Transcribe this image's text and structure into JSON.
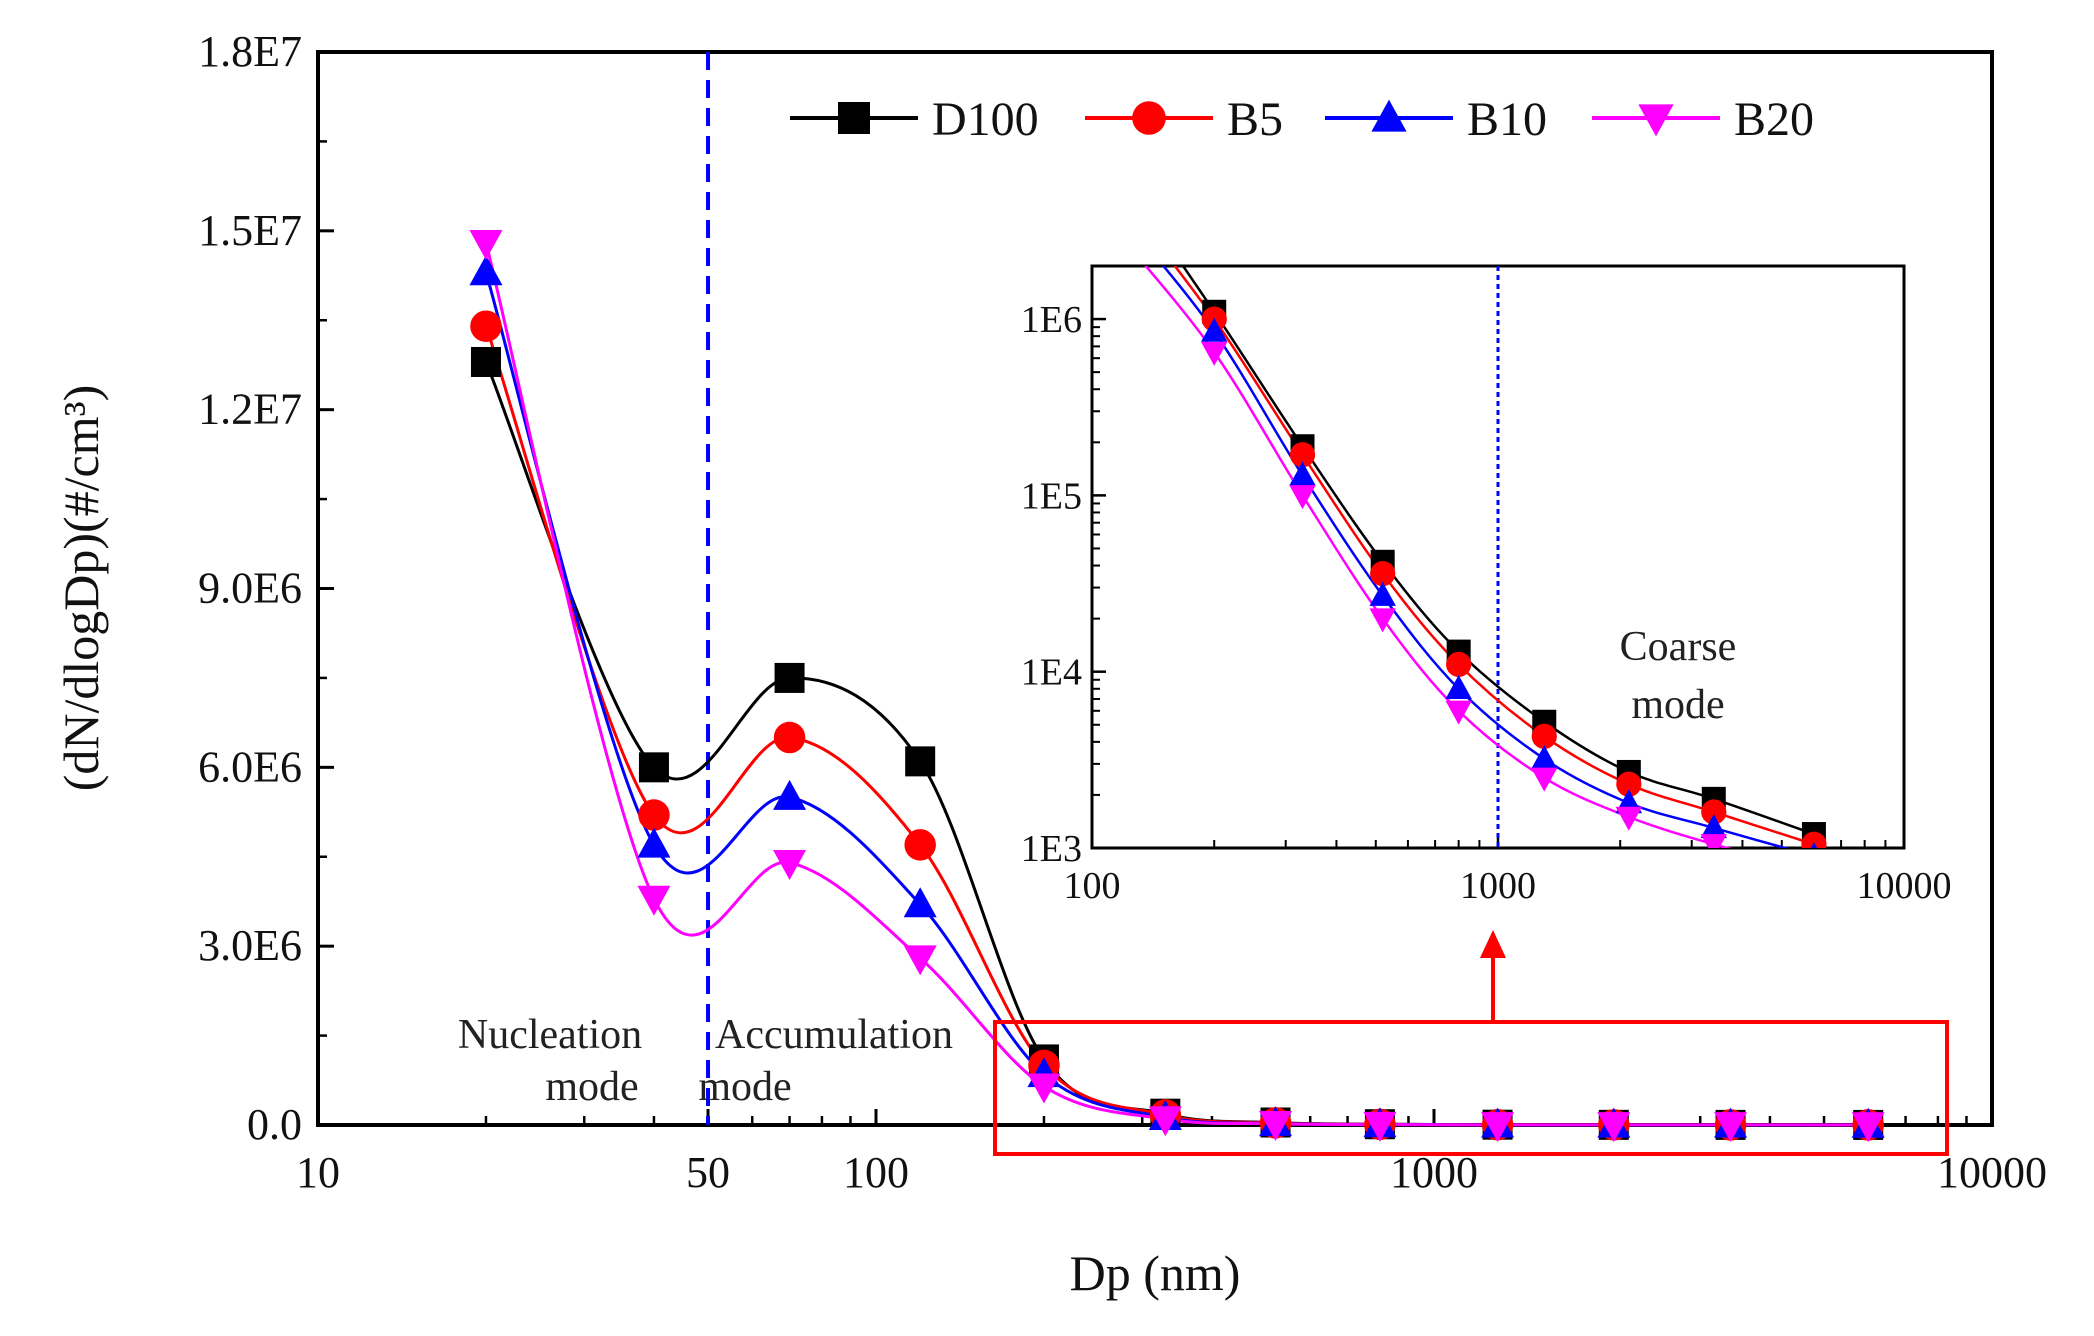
{
  "chart_data": [
    {
      "type": "line",
      "xlabel": "Dp (nm)",
      "ylabel": "(dN/dlogDp)(#/cm³)",
      "xscale": "log",
      "xlim": [
        10,
        10000
      ],
      "ylim": [
        0,
        18000000
      ],
      "x_ticks": [
        10,
        50,
        100,
        1000,
        10000
      ],
      "x_tick_labels": [
        "10",
        "50",
        "100",
        "1000",
        "10000"
      ],
      "y_ticks": [
        0,
        3000000,
        6000000,
        9000000,
        12000000,
        15000000,
        18000000
      ],
      "y_tick_labels": [
        "0.0",
        "3.0E6",
        "6.0E6",
        "9.0E6",
        "1.2E7",
        "1.5E7",
        "1.8E7"
      ],
      "x": [
        20,
        40,
        70,
        120,
        200,
        330,
        520,
        800,
        1300,
        2100,
        3400,
        6000
      ],
      "legend": "top-right",
      "grid": false,
      "series": [
        {
          "name": "D100",
          "color": "#000000",
          "marker": "square",
          "values": [
            12800000,
            6000000,
            7500000,
            6100000,
            1100000,
            190000,
            42000,
            13000,
            5200,
            2700,
            1900,
            1200
          ]
        },
        {
          "name": "B5",
          "color": "#ff0000",
          "marker": "circle",
          "values": [
            13400000,
            5200000,
            6500000,
            4700000,
            1000000,
            170000,
            36000,
            11000,
            4300,
            2300,
            1600,
            1050
          ]
        },
        {
          "name": "B10",
          "color": "#0000ff",
          "marker": "triangle-up",
          "values": [
            14300000,
            4700000,
            5500000,
            3700000,
            850000,
            130000,
            27000,
            8000,
            3200,
            1800,
            1300,
            900
          ]
        },
        {
          "name": "B20",
          "color": "#ff00ff",
          "marker": "triangle-down",
          "values": [
            14800000,
            3800000,
            4400000,
            2800000,
            650000,
            100000,
            20000,
            6000,
            2500,
            1500,
            1050,
            750
          ]
        }
      ],
      "reference_line": {
        "x": 50,
        "color": "#0000ff",
        "style": "dashed"
      },
      "annotations": [
        "Nucleation mode",
        "Accumulation mode"
      ]
    },
    {
      "type": "line",
      "inset": true,
      "xscale": "log",
      "yscale": "log",
      "xlim": [
        100,
        10000
      ],
      "ylim": [
        1000,
        2000000
      ],
      "x_ticks": [
        100,
        1000,
        10000
      ],
      "x_tick_labels": [
        "100",
        "1000",
        "10000"
      ],
      "y_ticks": [
        1000,
        10000,
        100000,
        1000000
      ],
      "y_tick_labels": [
        "1E3",
        "1E4",
        "1E5",
        "1E6"
      ],
      "reference_line": {
        "x": 1000,
        "color": "#0000ff",
        "style": "dashed"
      },
      "annotations": [
        "Coarse mode"
      ]
    }
  ],
  "legend": {
    "items": [
      {
        "label": "D100",
        "color": "#000000",
        "marker": "square"
      },
      {
        "label": "B5",
        "color": "#ff0000",
        "marker": "circle"
      },
      {
        "label": "B10",
        "color": "#0000ff",
        "marker": "triangle-up"
      },
      {
        "label": "B20",
        "color": "#ff00ff",
        "marker": "triangle-down"
      }
    ]
  },
  "annotations": {
    "nucleation": [
      "Nucleation",
      "mode"
    ],
    "accumulation": [
      "Accumulation",
      "mode"
    ],
    "coarse": [
      "Coarse",
      "mode"
    ]
  },
  "axis_titles": {
    "x_main": "Dp (nm)",
    "y_main": "(dN/dlogDp)(#/cm³)"
  },
  "colors": {
    "highlight_box": "#ff0000",
    "arrow": "#ff0000",
    "mode_divider": "#0000ff"
  }
}
